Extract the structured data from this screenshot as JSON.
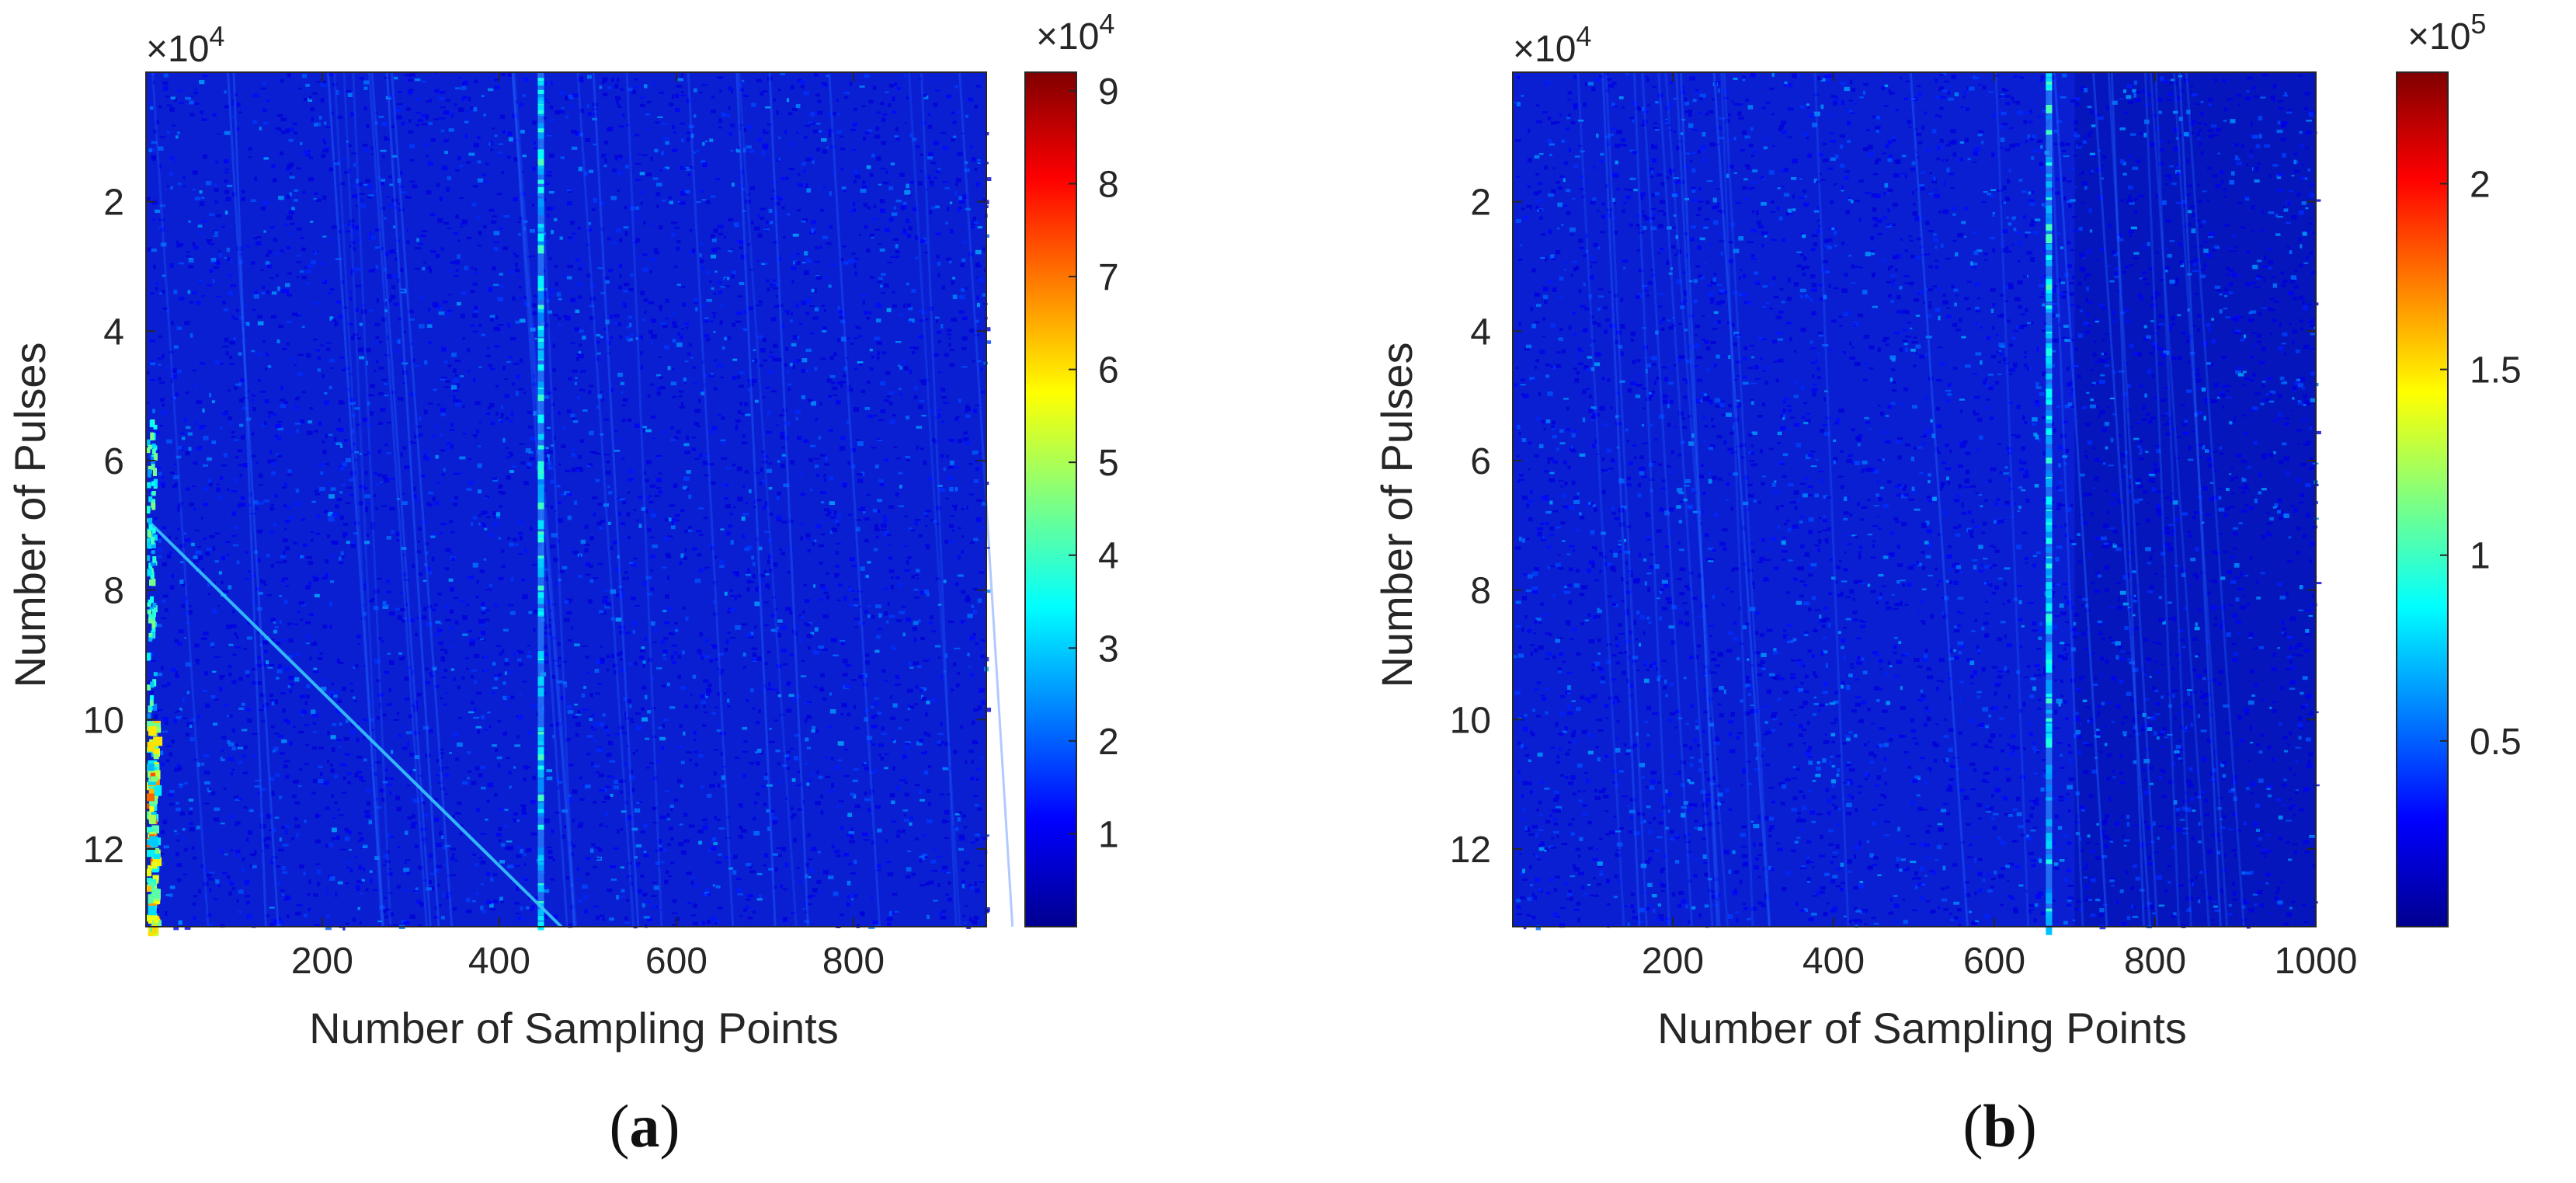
{
  "colors": {
    "background_low": "#0a1fd2",
    "colormap": [
      "#00008f",
      "#0000ff",
      "#0080ff",
      "#00ffff",
      "#80ff80",
      "#ffff00",
      "#ff8000",
      "#ff0000",
      "#800000"
    ]
  },
  "chart_data": [
    {
      "type": "heatmap",
      "panel_label": "a",
      "caption_open": "(",
      "caption_close": ")",
      "xlabel": "Number of Sampling Points",
      "ylabel": "Number of Pulses",
      "xlim": [
        1,
        950
      ],
      "ylim": [
        13.2,
        0
      ],
      "xticks": [
        200,
        400,
        600,
        800
      ],
      "xtick_labels": [
        "200",
        "400",
        "600",
        "800"
      ],
      "yticks": [
        2,
        4,
        6,
        8,
        10,
        12
      ],
      "ytick_labels": [
        "2",
        "4",
        "6",
        "8",
        "10",
        "12"
      ],
      "y_multiplier_base": "×10",
      "y_multiplier_exp": "4",
      "colorbar": {
        "min": 0,
        "max": 9.2,
        "ticks": [
          1,
          2,
          3,
          4,
          5,
          6,
          7,
          8,
          9
        ],
        "tick_labels": [
          "1",
          "2",
          "3",
          "4",
          "5",
          "6",
          "7",
          "8",
          "9"
        ],
        "multiplier_base": "×10",
        "multiplier_exp": "4"
      },
      "features": {
        "bright_column_x": 447,
        "diagonal_line": {
          "from": [
            1,
            6.9
          ],
          "to": [
            470,
            13.2
          ]
        },
        "hot_left_edge_y": [
          10,
          13.2
        ]
      }
    },
    {
      "type": "heatmap",
      "panel_label": "b",
      "caption_open": "(",
      "caption_close": ")",
      "xlabel": "Number of Sampling Points",
      "ylabel": "Number of Pulses",
      "xlim": [
        1,
        1000
      ],
      "ylim": [
        13.2,
        0
      ],
      "xticks": [
        200,
        400,
        600,
        800,
        1000
      ],
      "xtick_labels": [
        "200",
        "400",
        "600",
        "800",
        "1000"
      ],
      "yticks": [
        2,
        4,
        6,
        8,
        10,
        12
      ],
      "ytick_labels": [
        "2",
        "4",
        "6",
        "8",
        "10",
        "12"
      ],
      "y_multiplier_base": "×10",
      "y_multiplier_exp": "4",
      "colorbar": {
        "min": 0,
        "max": 2.3,
        "ticks": [
          0.5,
          1,
          1.5,
          2
        ],
        "tick_labels": [
          "0.5",
          "1",
          "1.5",
          "2"
        ],
        "multiplier_base": "×10",
        "multiplier_exp": "5"
      },
      "features": {
        "bright_column_x": 668,
        "dark_region_x_from": 700
      }
    }
  ]
}
